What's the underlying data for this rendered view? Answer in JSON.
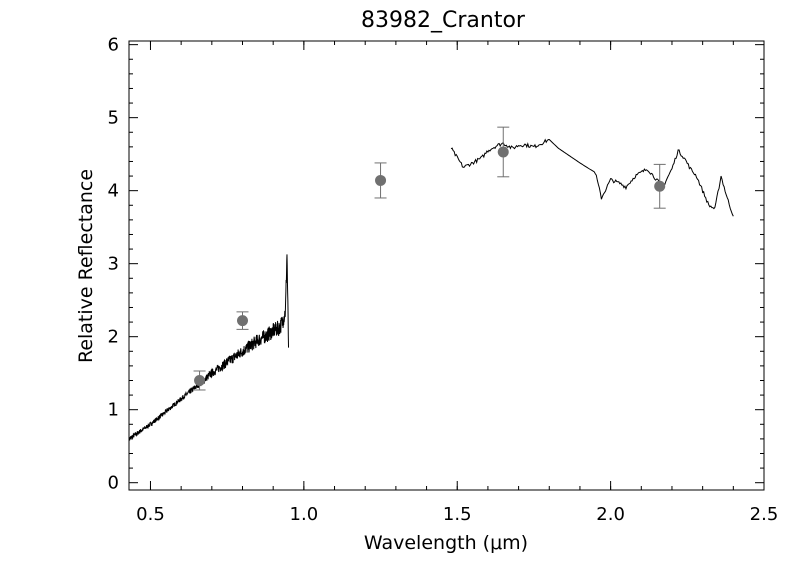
{
  "chart_data": {
    "type": "scatter",
    "title": "83982_Crantor",
    "xlabel": "Wavelength (μm)",
    "ylabel": "Relative Reflectance",
    "xlim": [
      0.43,
      2.5
    ],
    "ylim": [
      -0.1,
      6.05
    ],
    "x_ticks": [
      0.5,
      1.0,
      1.5,
      2.0,
      2.5
    ],
    "x_tick_labels": [
      "0.5",
      "1.0",
      "1.5",
      "2.0",
      "2.5"
    ],
    "y_ticks": [
      0,
      1,
      2,
      3,
      4,
      5,
      6
    ],
    "y_tick_labels": [
      "0",
      "1",
      "2",
      "3",
      "4",
      "5",
      "6"
    ],
    "grid": false,
    "series": [
      {
        "kind": "line",
        "color": "#000000",
        "noisy": true,
        "x": [
          0.43,
          0.5,
          0.55,
          0.6,
          0.65,
          0.7,
          0.75,
          0.8,
          0.85,
          0.88,
          0.9,
          0.92,
          0.93,
          0.94,
          0.945,
          0.95
        ],
        "y": [
          0.6,
          0.8,
          0.97,
          1.15,
          1.32,
          1.5,
          1.65,
          1.8,
          1.95,
          2.02,
          2.08,
          2.12,
          2.2,
          2.35,
          3.15,
          1.85
        ]
      },
      {
        "kind": "line",
        "color": "#000000",
        "noisy": false,
        "x": [
          1.48,
          1.5,
          1.52,
          1.55,
          1.58,
          1.6,
          1.63,
          1.65,
          1.68,
          1.7,
          1.72,
          1.75,
          1.78,
          1.8,
          1.83,
          1.9,
          1.93,
          1.95,
          1.97,
          2.0,
          2.03,
          2.05,
          2.08,
          2.1,
          2.12,
          2.15,
          2.17,
          2.2,
          2.22,
          2.24,
          2.26,
          2.28,
          2.3,
          2.32,
          2.34,
          2.36,
          2.38,
          2.4
        ],
        "y": [
          4.58,
          4.45,
          4.32,
          4.38,
          4.45,
          4.55,
          4.62,
          4.65,
          4.58,
          4.62,
          4.63,
          4.6,
          4.66,
          4.7,
          4.58,
          4.38,
          4.3,
          4.25,
          3.9,
          4.15,
          4.1,
          4.05,
          4.2,
          4.25,
          4.3,
          4.15,
          4.05,
          4.3,
          4.55,
          4.45,
          4.3,
          4.2,
          4.0,
          3.8,
          3.75,
          4.2,
          3.9,
          3.65
        ]
      }
    ],
    "points": {
      "color": "#707070",
      "x": [
        0.66,
        0.8,
        1.25,
        1.65,
        2.16
      ],
      "y": [
        1.4,
        2.22,
        4.14,
        4.53,
        4.06
      ],
      "err": [
        0.13,
        0.12,
        0.24,
        0.34,
        0.3
      ]
    }
  }
}
